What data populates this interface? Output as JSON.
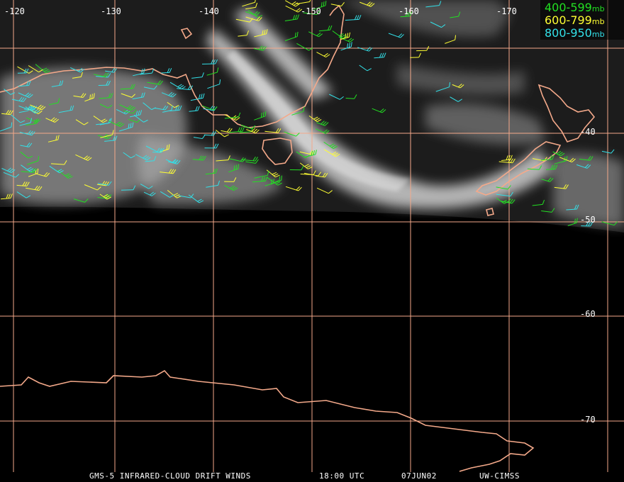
{
  "colors": {
    "grid": "#f4a98a",
    "coast": "#f4a98a",
    "level_400_599": "#22e022",
    "level_600_799": "#ffff33",
    "level_800_950": "#33e0e8",
    "cloud": "#d8d8d8",
    "text": "#ffffff"
  },
  "longitude_labels": [
    "-120",
    "-130",
    "-140",
    "-150",
    "-160",
    "-170"
  ],
  "latitude_labels": [
    "-40",
    "-50",
    "-60",
    "-70"
  ],
  "legend": [
    {
      "range": "400-599",
      "unit": "mb",
      "color": "#22e022"
    },
    {
      "range": "600-799",
      "unit": "mb",
      "color": "#ffff33"
    },
    {
      "range": "800-950",
      "unit": "mb",
      "color": "#33e0e8"
    }
  ],
  "caption": {
    "product": "GMS-5 INFRARED-CLOUD DRIFT WINDS",
    "time": "18:00 UTC",
    "date": "07JUN02",
    "source": "UW-CIMSS"
  }
}
